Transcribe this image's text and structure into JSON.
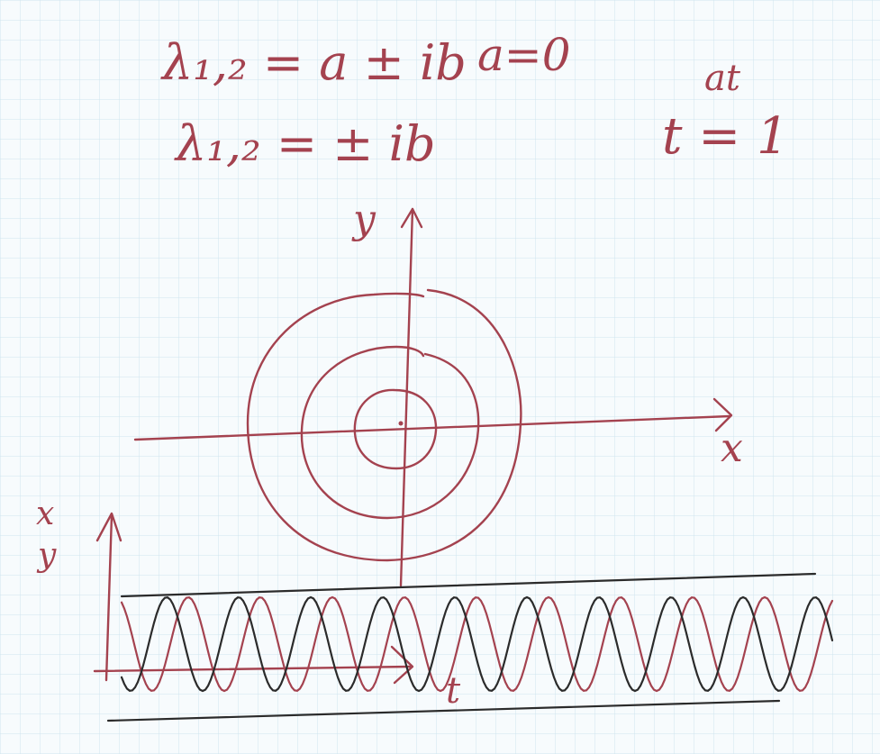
{
  "notes": {
    "line1": "λ₁,₂ = a ± ib",
    "line1_condition": "a=0",
    "line2": "λ₁,₂ = ± ib",
    "exp_label": "at",
    "time_label": "t = 1"
  },
  "phase_plane": {
    "y_axis_label": "y",
    "x_axis_label": "x",
    "orbit_count": 3
  },
  "time_plot": {
    "vertical_axis_label_top": "x",
    "vertical_axis_label_bottom": "y",
    "time_axis_label": "t",
    "series": [
      {
        "name": "x",
        "color": "#a4424f"
      },
      {
        "name": "y",
        "color": "#2b2b2b"
      }
    ]
  },
  "colors": {
    "ink": "#a4424f",
    "dark_ink": "#2b2b2b",
    "grid": "#cfe4ee",
    "paper": "#f7fbfd"
  }
}
